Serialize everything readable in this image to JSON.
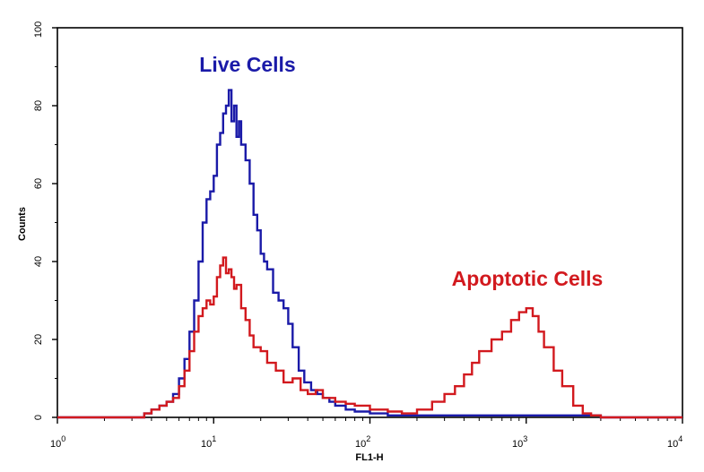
{
  "chart_data": {
    "type": "line",
    "title": "",
    "xlabel": "FL1-H",
    "ylabel": "Counts",
    "xscale": "log",
    "xlim": [
      1,
      10000
    ],
    "ylim": [
      0,
      100
    ],
    "x_ticks": [
      {
        "base": "10",
        "exp": "0"
      },
      {
        "base": "10",
        "exp": "1"
      },
      {
        "base": "10",
        "exp": "2"
      },
      {
        "base": "10",
        "exp": "3"
      },
      {
        "base": "10",
        "exp": "4"
      }
    ],
    "y_ticks": [
      "0",
      "20",
      "40",
      "60",
      "80",
      "100"
    ],
    "colors": {
      "live": "#1a1aa8",
      "apoptotic": "#d2191e",
      "frame": "#000000"
    },
    "annotations": [
      {
        "text": "Live Cells",
        "series": "live"
      },
      {
        "text": "Apoptotic Cells",
        "series": "apoptotic"
      }
    ],
    "series": [
      {
        "name": "Live Cells",
        "key": "live",
        "x": [
          1,
          3.2,
          3.6,
          4,
          4.5,
          5,
          5.5,
          6,
          6.5,
          7,
          7.5,
          8,
          8.5,
          9,
          9.5,
          10,
          10.5,
          11,
          11.5,
          12,
          12.5,
          13,
          13.5,
          14,
          14.5,
          15,
          16,
          17,
          18,
          19,
          20,
          21,
          22,
          24,
          26,
          28,
          30,
          32,
          35,
          38,
          42,
          46,
          50,
          55,
          60,
          70,
          80,
          100,
          130,
          200,
          300,
          500,
          1000,
          2000,
          3000,
          10000
        ],
        "y": [
          0,
          0,
          1,
          2,
          3,
          4,
          6,
          10,
          15,
          22,
          30,
          40,
          50,
          56,
          58,
          62,
          70,
          73,
          78,
          80,
          84,
          76,
          80,
          72,
          76,
          70,
          66,
          60,
          52,
          48,
          42,
          40,
          38,
          32,
          30,
          28,
          24,
          18,
          12,
          9,
          7,
          6,
          5,
          4,
          3,
          2,
          1.5,
          1,
          0.5,
          0.5,
          0.5,
          0.5,
          0.5,
          0.5,
          0,
          0
        ]
      },
      {
        "name": "Apoptotic Cells",
        "key": "apoptotic",
        "x": [
          1,
          3.2,
          3.6,
          4,
          4.5,
          5,
          5.5,
          6,
          6.5,
          7,
          7.5,
          8,
          8.5,
          9,
          9.5,
          10,
          10.5,
          11,
          11.5,
          12,
          12.5,
          13,
          13.5,
          14,
          15,
          16,
          17,
          18,
          20,
          22,
          25,
          28,
          32,
          36,
          40,
          45,
          50,
          60,
          70,
          80,
          100,
          130,
          160,
          200,
          250,
          300,
          350,
          400,
          450,
          500,
          600,
          700,
          800,
          900,
          1000,
          1100,
          1200,
          1300,
          1500,
          1700,
          2000,
          2300,
          2600,
          3000,
          10000
        ],
        "y": [
          0,
          0,
          1,
          2,
          3,
          4,
          5,
          8,
          12,
          17,
          22,
          26,
          28,
          30,
          29,
          31,
          36,
          39,
          41,
          37,
          38,
          36,
          33,
          34,
          28,
          25,
          21,
          18,
          17,
          14,
          12,
          9,
          10,
          7,
          6,
          7,
          5,
          4,
          3.5,
          3,
          2,
          1.5,
          1,
          2,
          4,
          6,
          8,
          11,
          14,
          17,
          20,
          22,
          25,
          27,
          28,
          26,
          22,
          18,
          12,
          8,
          3,
          1,
          0.5,
          0,
          0
        ]
      }
    ]
  }
}
